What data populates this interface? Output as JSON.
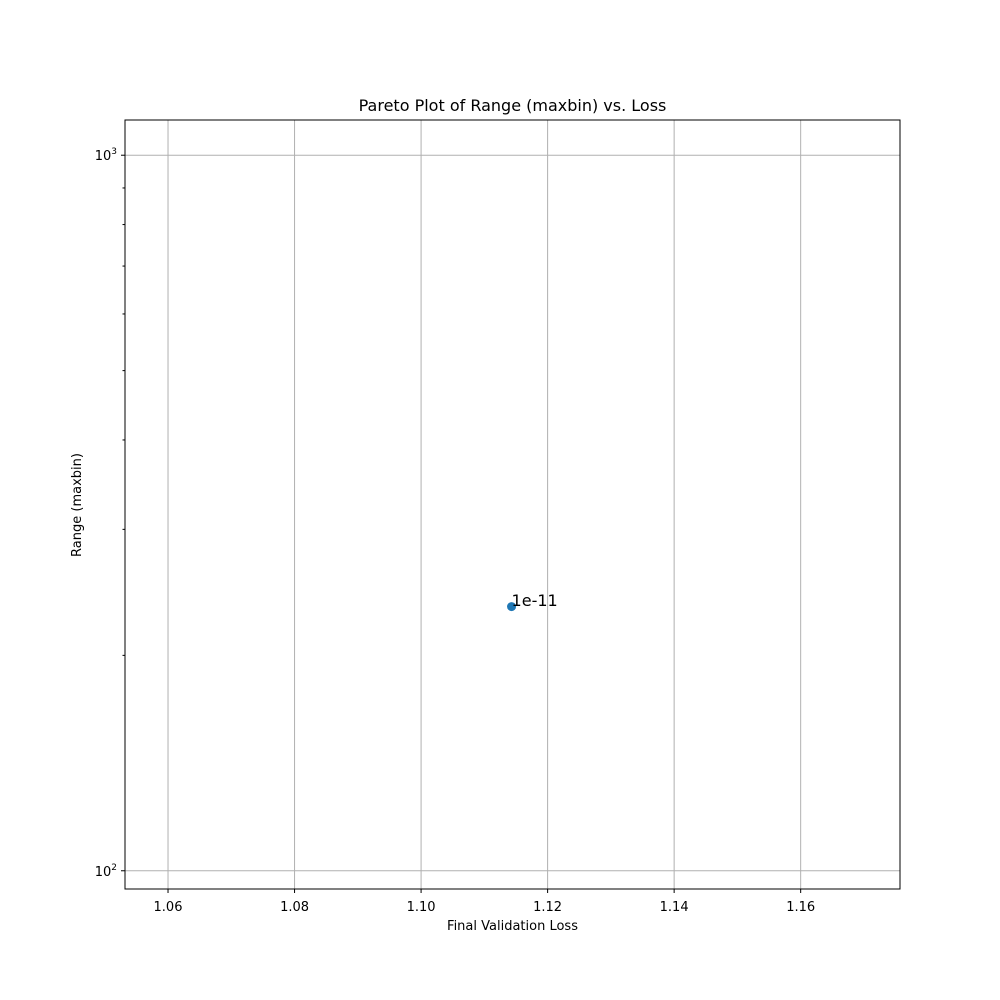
{
  "chart_data": {
    "type": "scatter",
    "title": "Pareto Plot of Range (maxbin) vs. Loss",
    "xlabel": "Final Validation Loss",
    "ylabel": "Range (maxbin)",
    "xlim": [
      1.0532,
      1.1757
    ],
    "ylim": [
      94.3,
      1120
    ],
    "yscale": "log",
    "grid": true,
    "x_ticks": [
      {
        "value": 1.06,
        "label": "1.06"
      },
      {
        "value": 1.08,
        "label": "1.08"
      },
      {
        "value": 1.1,
        "label": "1.10"
      },
      {
        "value": 1.12,
        "label": "1.12"
      },
      {
        "value": 1.14,
        "label": "1.14"
      },
      {
        "value": 1.16,
        "label": "1.16"
      }
    ],
    "y_major_ticks": [
      {
        "value": 100,
        "base": "10",
        "exp": "2"
      },
      {
        "value": 1000,
        "base": "10",
        "exp": "3"
      }
    ],
    "y_minor_ticks": [
      200,
      300,
      400,
      500,
      600,
      700,
      800,
      900
    ],
    "series": [
      {
        "color": "#1f77b4",
        "points": [
          {
            "x": 1.1143,
            "y": 234,
            "label": "1e-11"
          }
        ]
      }
    ]
  }
}
